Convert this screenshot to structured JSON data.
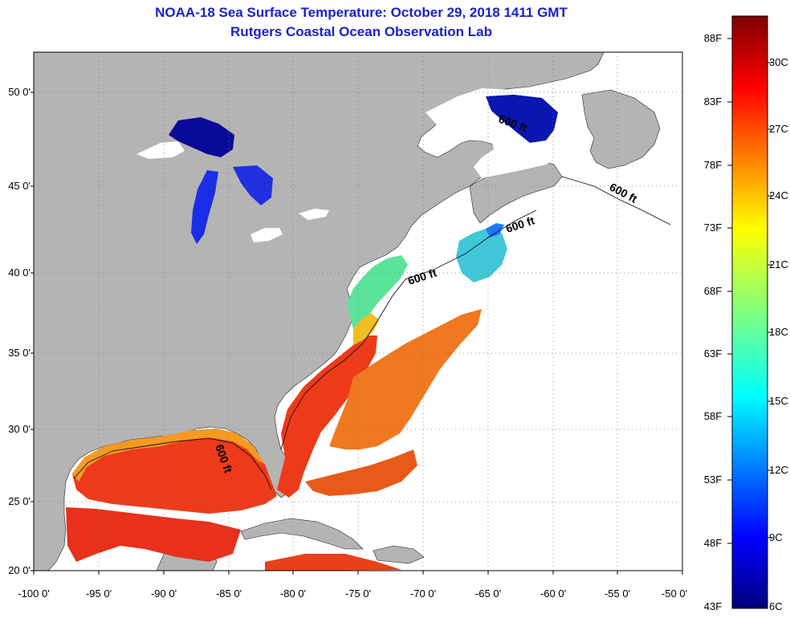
{
  "title": {
    "line1": "NOAA-18 Sea Surface Temperature:  October 29, 2018 1411 GMT",
    "line2": "Rutgers Coastal Ocean Observation Lab"
  },
  "axes": {
    "lat_labels": [
      "50 0'",
      "45 0'",
      "40 0'",
      "35 0'",
      "30 0'",
      "25 0'",
      "20 0'"
    ],
    "lon_labels": [
      "-100 0'",
      "-95 0'",
      "-90 0'",
      "-85 0'",
      "-80 0'",
      "-75 0'",
      "-70 0'",
      "-65 0'",
      "-60 0'",
      "-55 0'",
      "-50 0'"
    ]
  },
  "colorbar": {
    "fahrenheit": [
      "88F",
      "83F",
      "78F",
      "73F",
      "68F",
      "63F",
      "58F",
      "53F",
      "48F",
      "43F"
    ],
    "celsius": [
      "30C",
      "27C",
      "24C",
      "21C",
      "18C",
      "15C",
      "12C",
      "9C",
      "6C"
    ]
  },
  "contour_label": "600 ft",
  "colors": {
    "land": "#b4b4b4",
    "ocean_nodata": "#ffffff",
    "title": "#1a22c8",
    "grid": "#777777"
  }
}
